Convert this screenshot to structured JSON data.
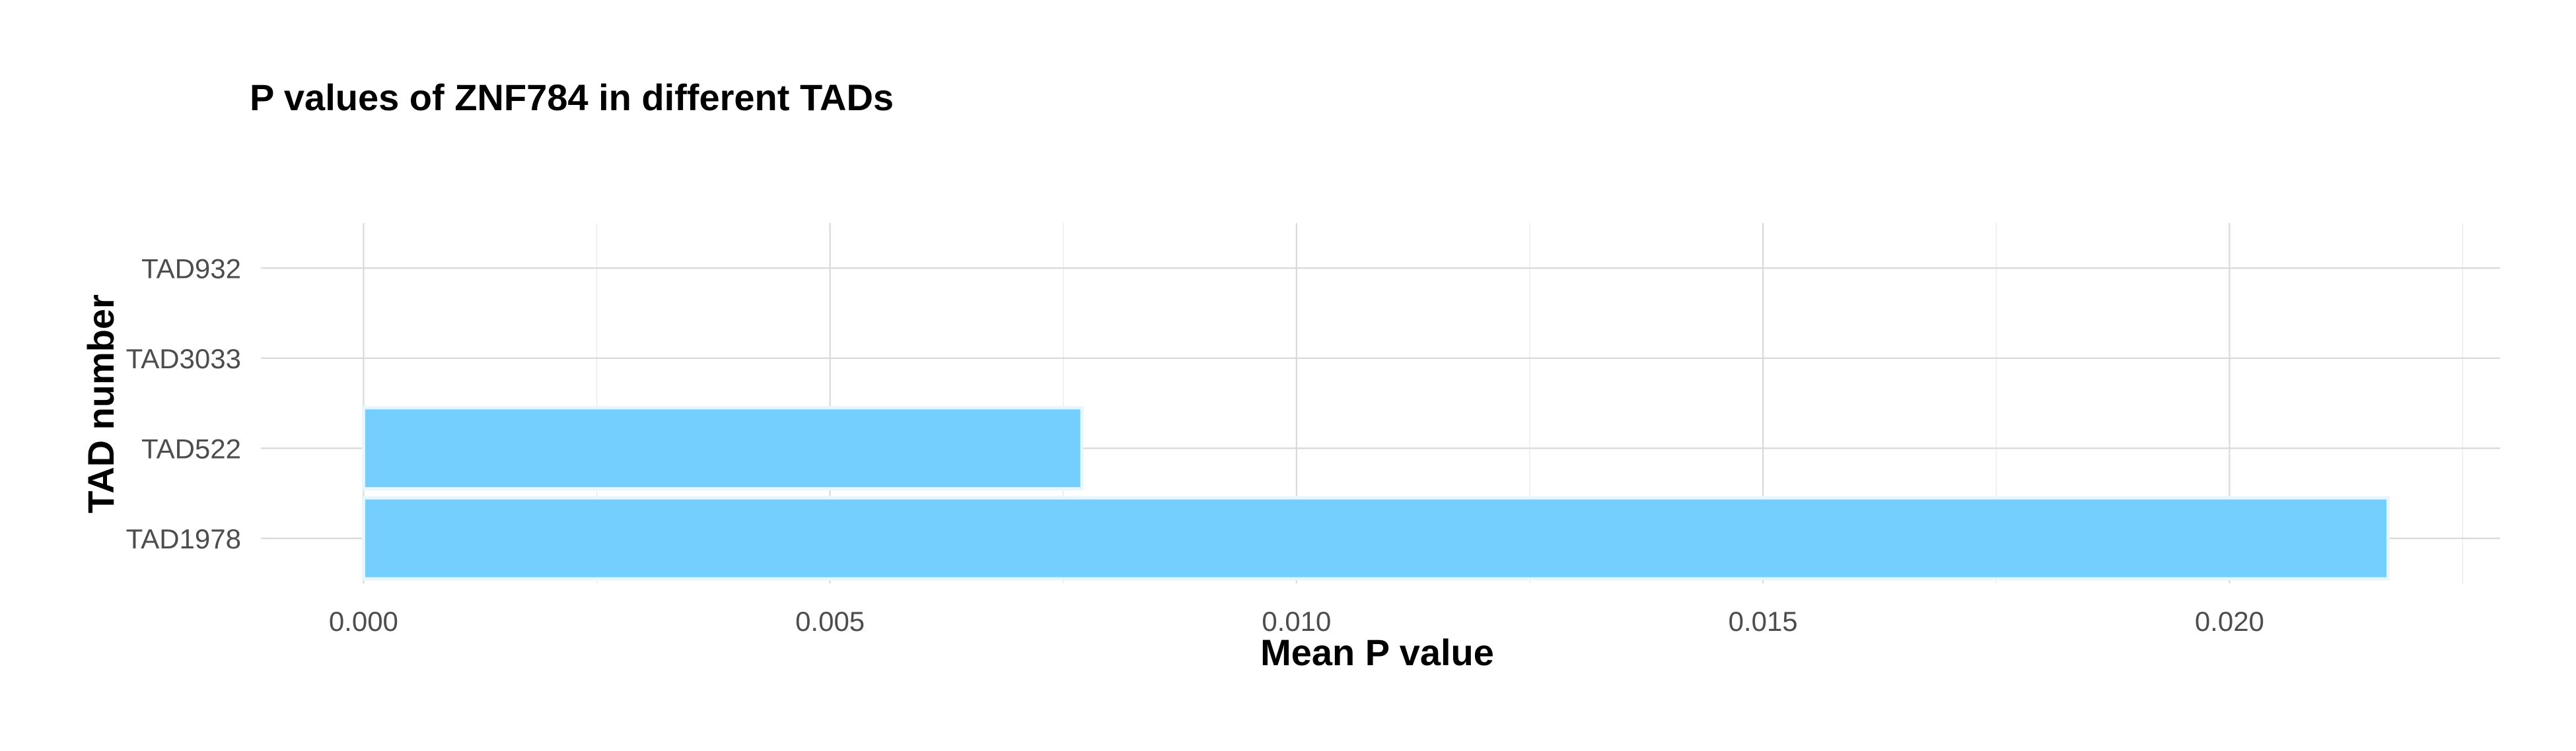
{
  "chart_data": {
    "type": "bar",
    "orientation": "horizontal",
    "title": "P values of ZNF784 in different TADs",
    "xlabel": "Mean P value",
    "ylabel": "TAD number",
    "categories": [
      "TAD1978",
      "TAD522",
      "TAD3033",
      "TAD932"
    ],
    "values": [
      0.0217,
      0.0077,
      0.0,
      0.0
    ],
    "xlim": [
      -0.0011,
      0.0229
    ],
    "x_ticks": [
      0.0,
      0.005,
      0.01,
      0.015,
      0.02
    ],
    "x_tick_labels": [
      "0.000",
      "0.005",
      "0.010",
      "0.015",
      "0.020"
    ],
    "grid": true,
    "legend": "none",
    "bar_color": "#74CFFF"
  }
}
